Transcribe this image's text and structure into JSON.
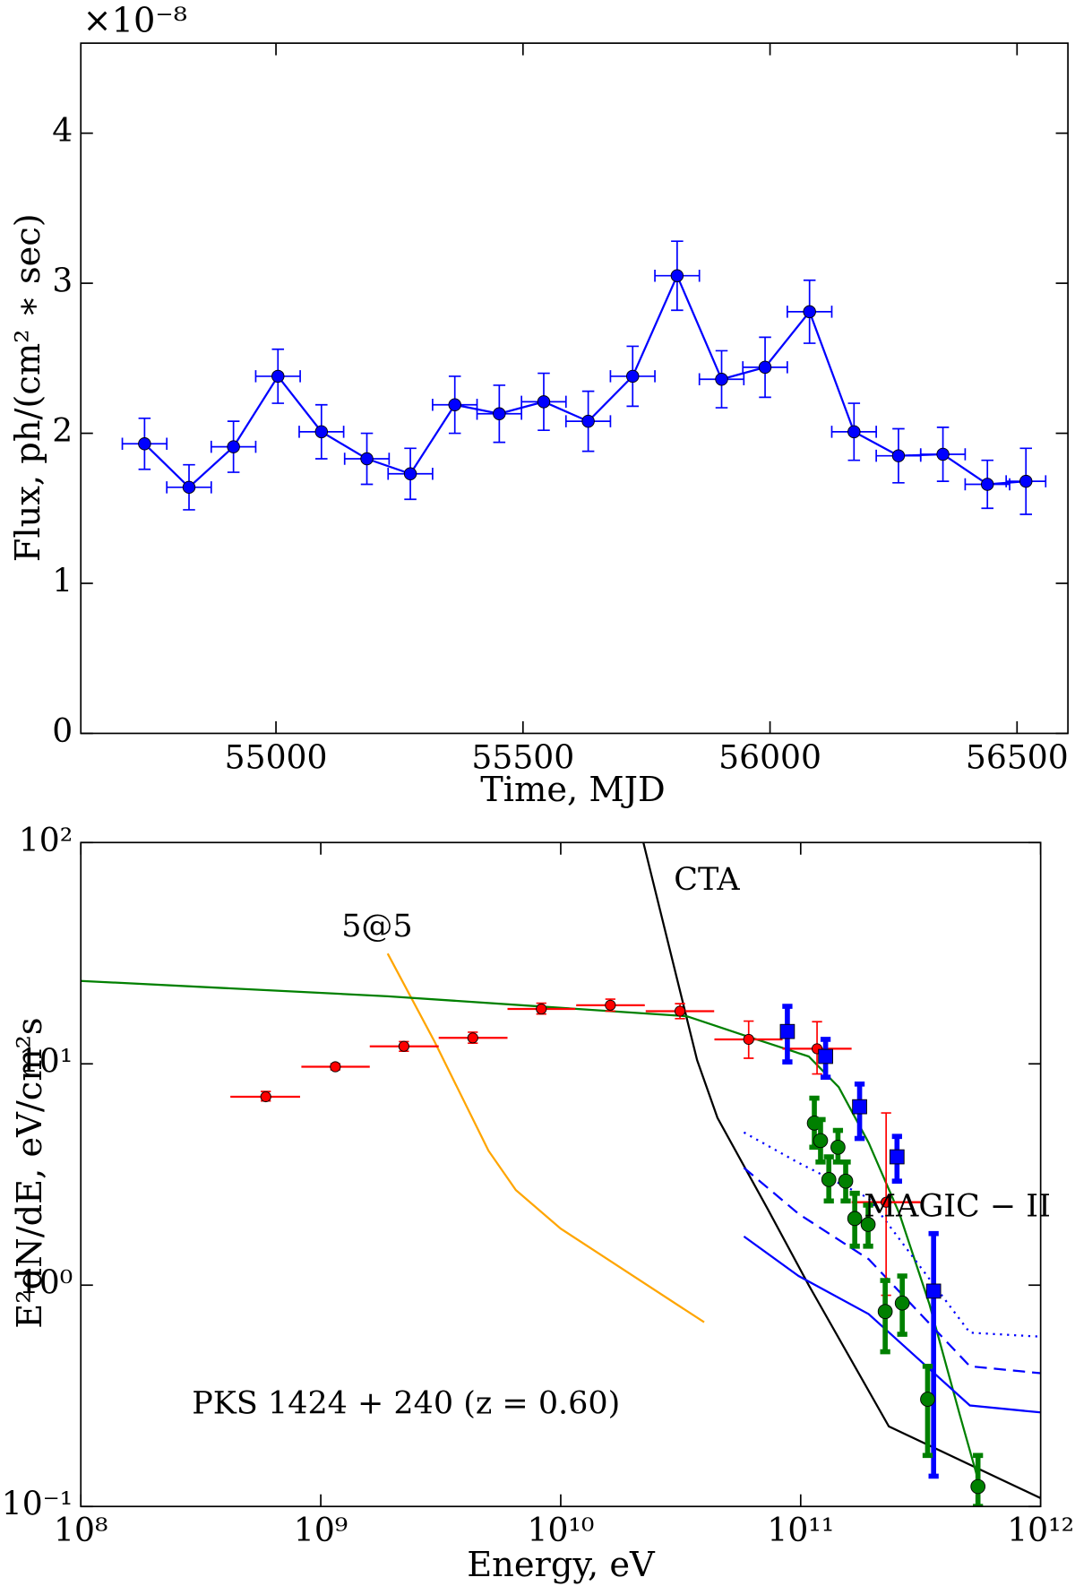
{
  "chart_data": [
    {
      "type": "line",
      "xlabel": "Time, MJD",
      "ylabel": "Flux, ph/(cm² ∗ sec)",
      "offset_label": "×10⁻⁸",
      "color": "#0000ff",
      "x": [
        54734,
        54824,
        54914,
        55004,
        55092,
        55184,
        55272,
        55362,
        55452,
        55542,
        55632,
        55722,
        55812,
        55902,
        55990,
        56080,
        56170,
        56260,
        56350,
        56440,
        56518
      ],
      "xerr": [
        45,
        45,
        45,
        45,
        45,
        45,
        45,
        45,
        45,
        45,
        45,
        45,
        45,
        45,
        45,
        45,
        45,
        45,
        45,
        45,
        40
      ],
      "values": [
        1.93,
        1.64,
        1.91,
        2.38,
        2.01,
        1.83,
        1.73,
        2.19,
        2.13,
        2.21,
        2.08,
        2.38,
        3.05,
        2.36,
        2.44,
        2.81,
        2.01,
        1.85,
        1.86,
        1.66,
        1.68
      ],
      "yerr": [
        0.17,
        0.15,
        0.17,
        0.18,
        0.18,
        0.17,
        0.17,
        0.19,
        0.19,
        0.19,
        0.2,
        0.2,
        0.23,
        0.19,
        0.2,
        0.21,
        0.19,
        0.18,
        0.18,
        0.16,
        0.22
      ],
      "xlim": [
        54605,
        56603
      ],
      "ylim": [
        0,
        4.6
      ],
      "xticks": [
        55000,
        55500,
        56000,
        56500
      ],
      "yticks": [
        0,
        1,
        2,
        3,
        4
      ]
    },
    {
      "type": "scatter",
      "xscale": "log",
      "yscale": "log",
      "xlabel": "Energy, eV",
      "ylabel": "E²dN/dE, eV/cm²s",
      "xlim": [
        100000000,
        1000000000000
      ],
      "ylim": [
        0.1,
        100
      ],
      "xticks": [
        {
          "value": 100000000,
          "label": "10⁸"
        },
        {
          "value": 1000000000,
          "label": "10⁹"
        },
        {
          "value": 10000000000,
          "label": "10¹⁰"
        },
        {
          "value": 100000000000,
          "label": "10¹¹"
        },
        {
          "value": 1000000000000,
          "label": "10¹²"
        }
      ],
      "yticks": [
        {
          "value": 0.1,
          "label": "10⁻¹"
        },
        {
          "value": 1,
          "label": "10⁰"
        },
        {
          "value": 10,
          "label": "10¹"
        },
        {
          "value": 100,
          "label": "10²"
        }
      ],
      "annotations": [
        "CTA",
        "5@5",
        "MAGIC − II",
        "PKS 1424 + 240 (z = 0.60)"
      ],
      "series": [
        {
          "color": "#000000",
          "linestyle": "solid",
          "x": [
            22100000000,
            37000000000,
            45000000000,
            73000000000,
            108000000000,
            233000000000,
            1000000000000
          ],
          "values": [
            100,
            10.4,
            5.7,
            2.2,
            1.0,
            0.23,
            0.109
          ]
        },
        {
          "color": "#ffa500",
          "linestyle": "solid",
          "x": [
            1900000000,
            2980000000,
            5000000000,
            6500000000,
            10000000000,
            39600000000
          ],
          "values": [
            31.5,
            12.6,
            4.05,
            2.69,
            1.8,
            0.68
          ]
        },
        {
          "color": "#008000",
          "linestyle": "solid",
          "x": [
            100000000,
            1900000000,
            33600000000,
            60000000000,
            108000000000,
            144000000000,
            192000000000,
            258000000000,
            344000000000,
            460000000000,
            559000000000
          ],
          "values": [
            23.7,
            20.2,
            16.4,
            13.3,
            10.8,
            7.85,
            4.4,
            2.1,
            0.82,
            0.26,
            0.123
          ]
        },
        {
          "color": "#0000ff",
          "linestyle": "solid",
          "x": [
            58000000000,
            98000000000,
            192000000000,
            507000000000,
            1000000000000
          ],
          "values": [
            1.66,
            1.1,
            0.74,
            0.286,
            0.266
          ]
        },
        {
          "color": "#0000ff",
          "linestyle": "dashed",
          "x": [
            58000000000,
            98000000000,
            192000000000,
            507000000000,
            1000000000000
          ],
          "values": [
            3.39,
            2.1,
            1.31,
            0.43,
            0.4
          ]
        },
        {
          "color": "#0000ff",
          "linestyle": "dotted",
          "x": [
            58000000000,
            98000000000,
            192000000000,
            507000000000,
            1000000000000
          ],
          "values": [
            4.9,
            3.57,
            2.47,
            0.61,
            0.585
          ]
        },
        {
          "color": "#ff0000",
          "marker": "circle",
          "x": [
            590000000,
            1150000000,
            2220000000,
            4300000000,
            8300000000,
            16100000000,
            31400000000,
            60700000000,
            117000000000,
            227000000000
          ],
          "x_low": [
            420000000,
            830000000,
            1600000000,
            3100000000,
            6000000000,
            11600000000,
            22600000000,
            43700000000,
            84000000000,
            163000000000
          ],
          "x_high": [
            820000000,
            1600000000,
            3100000000,
            6000000000,
            11500000000,
            22400000000,
            43600000000,
            84000000000,
            163000000000,
            316000000000
          ],
          "values": [
            7.1,
            9.7,
            12.0,
            13.1,
            17.7,
            18.4,
            17.3,
            12.9,
            11.7,
            2.37
          ],
          "y_low": [
            6.8,
            9.4,
            11.4,
            12.4,
            16.8,
            17.3,
            16.0,
            10.6,
            9.0,
            0.9
          ],
          "y_high": [
            7.5,
            10.0,
            12.6,
            13.9,
            18.8,
            19.6,
            18.7,
            15.6,
            15.5,
            6.0
          ]
        },
        {
          "color": "#0000ff",
          "marker": "square",
          "x": [
            88000000000,
            127000000000,
            176000000000,
            252000000000,
            358000000000
          ],
          "values": [
            14.0,
            10.8,
            6.4,
            3.8,
            0.94
          ],
          "y_low": [
            10.2,
            8.7,
            4.6,
            2.95,
            0.137
          ],
          "y_high": [
            18.2,
            12.9,
            8.1,
            4.7,
            1.71
          ]
        },
        {
          "color": "#008000",
          "marker": "circle",
          "x": [
            114000000000,
            121000000000,
            131000000000,
            143000000000,
            154000000000,
            168000000000,
            191000000000,
            225000000000,
            265000000000,
            338000000000,
            548000000000
          ],
          "values": [
            5.4,
            4.5,
            3.0,
            4.2,
            2.95,
            2.0,
            1.88,
            0.76,
            0.83,
            0.305,
            0.123
          ],
          "y_low": [
            4.2,
            3.6,
            2.4,
            3.6,
            2.4,
            1.5,
            1.5,
            0.5,
            0.6,
            0.17,
            0.1
          ],
          "y_high": [
            7.0,
            5.6,
            3.8,
            5.0,
            3.6,
            2.6,
            2.3,
            1.05,
            1.1,
            0.43,
            0.17
          ]
        }
      ]
    }
  ]
}
